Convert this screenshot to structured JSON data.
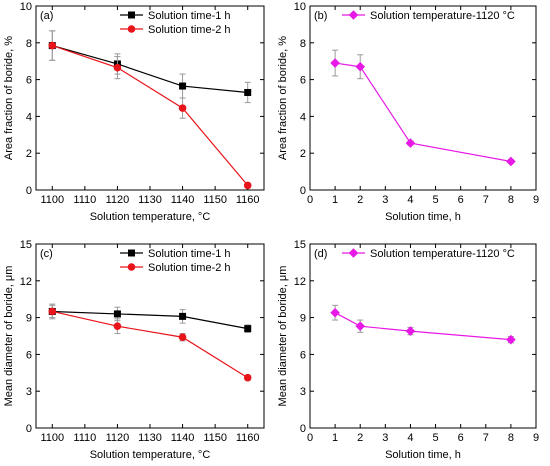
{
  "chart_data": [
    {
      "type": "line",
      "panel_label": "(a)",
      "xlabel": "Solution temperature, °C",
      "ylabel": "Area fraction of boride, %",
      "xlim": [
        1095,
        1165
      ],
      "ylim": [
        0,
        10
      ],
      "xticks": [
        "1100",
        "1110",
        "1120",
        "1130",
        "1140",
        "1150",
        "1160"
      ],
      "yticks": [
        "0",
        "2",
        "4",
        "6",
        "8",
        "10"
      ],
      "legend": "top-right",
      "series": [
        {
          "name": "Solution time-1 h",
          "color": "#000000",
          "marker": "square",
          "x": [
            1100,
            1120,
            1140,
            1160
          ],
          "y": [
            7.85,
            6.85,
            5.65,
            5.3
          ],
          "err": [
            0.8,
            0.55,
            0.65,
            0.55
          ]
        },
        {
          "name": "Solution time-2 h",
          "color": "#e8141a",
          "marker": "circle",
          "x": [
            1100,
            1120,
            1140,
            1160
          ],
          "y": [
            7.85,
            6.65,
            4.45,
            0.25
          ],
          "err": [
            0.8,
            0.6,
            0.55,
            0.1
          ]
        }
      ]
    },
    {
      "type": "line",
      "panel_label": "(b)",
      "xlabel": "Solution time, h",
      "ylabel": "Area fraction of boride, %",
      "xlim": [
        0,
        9
      ],
      "ylim": [
        0,
        10
      ],
      "xticks": [
        "0",
        "1",
        "2",
        "3",
        "4",
        "5",
        "6",
        "7",
        "8",
        "9"
      ],
      "yticks": [
        "0",
        "2",
        "4",
        "6",
        "8",
        "10"
      ],
      "legend": "top-right",
      "series": [
        {
          "name": "Solution temperature-1120 °C",
          "color": "#e619e6",
          "marker": "diamond",
          "x": [
            1,
            2,
            4,
            8
          ],
          "y": [
            6.9,
            6.7,
            2.55,
            1.55
          ],
          "err": [
            0.7,
            0.65,
            0.1,
            0.1
          ]
        }
      ]
    },
    {
      "type": "line",
      "panel_label": "(c)",
      "xlabel": "Solution temperature, °C",
      "ylabel": "Mean diameter of boride, μm",
      "xlim": [
        1095,
        1165
      ],
      "ylim": [
        0,
        15
      ],
      "xticks": [
        "1100",
        "1110",
        "1120",
        "1130",
        "1140",
        "1150",
        "1160"
      ],
      "yticks": [
        "0",
        "3",
        "6",
        "9",
        "12",
        "15"
      ],
      "legend": "top-right",
      "series": [
        {
          "name": "Solution time-1 h",
          "color": "#000000",
          "marker": "square",
          "x": [
            1100,
            1120,
            1140,
            1160
          ],
          "y": [
            9.5,
            9.3,
            9.1,
            8.1
          ],
          "err": [
            0.5,
            0.55,
            0.55,
            0.3
          ]
        },
        {
          "name": "Solution time-2 h",
          "color": "#e8141a",
          "marker": "circle",
          "x": [
            1100,
            1120,
            1140,
            1160
          ],
          "y": [
            9.5,
            8.3,
            7.4,
            4.1
          ],
          "err": [
            0.6,
            0.6,
            0.3,
            0.2
          ]
        }
      ]
    },
    {
      "type": "line",
      "panel_label": "(d)",
      "xlabel": "Solution time, h",
      "ylabel": "Mean diameter of boride, μm",
      "xlim": [
        0,
        9
      ],
      "ylim": [
        0,
        15
      ],
      "xticks": [
        "0",
        "1",
        "2",
        "3",
        "4",
        "5",
        "6",
        "7",
        "8",
        "9"
      ],
      "yticks": [
        "0",
        "3",
        "6",
        "9",
        "12",
        "15"
      ],
      "legend": "top-right",
      "series": [
        {
          "name": "Solution temperature-1120 °C",
          "color": "#e619e6",
          "marker": "diamond",
          "x": [
            1,
            2,
            4,
            8
          ],
          "y": [
            9.4,
            8.3,
            7.9,
            7.2
          ],
          "err": [
            0.6,
            0.5,
            0.3,
            0.25
          ]
        }
      ]
    }
  ]
}
